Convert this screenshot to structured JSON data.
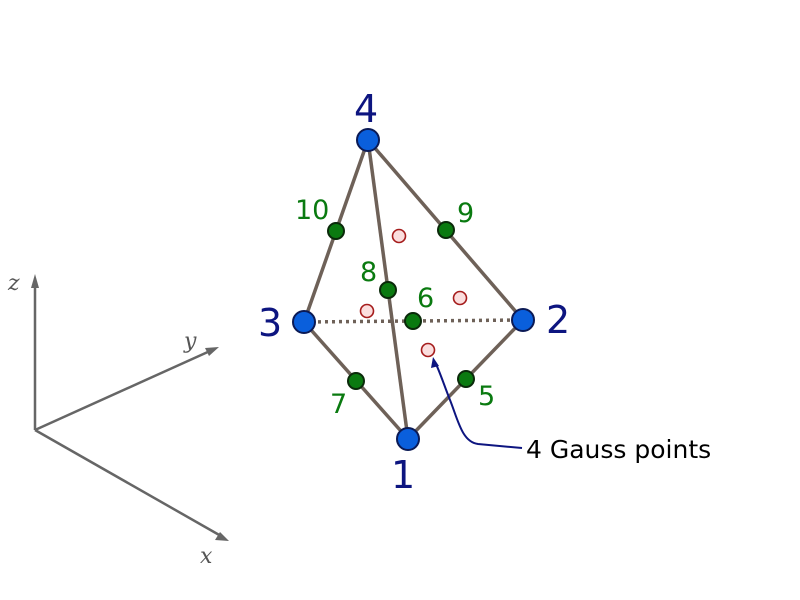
{
  "axes": {
    "labels": {
      "x": "x",
      "y": "y",
      "z": "z"
    },
    "color": "#666666"
  },
  "corner_nodes": [
    {
      "id": "1",
      "label": "1"
    },
    {
      "id": "2",
      "label": "2"
    },
    {
      "id": "3",
      "label": "3"
    },
    {
      "id": "4",
      "label": "4"
    }
  ],
  "midside_nodes": [
    {
      "id": "5",
      "label": "5",
      "edge": [
        "1",
        "2"
      ]
    },
    {
      "id": "6",
      "label": "6",
      "edge": [
        "2",
        "3"
      ]
    },
    {
      "id": "7",
      "label": "7",
      "edge": [
        "1",
        "3"
      ]
    },
    {
      "id": "8",
      "label": "8",
      "edge": [
        "1",
        "4"
      ]
    },
    {
      "id": "9",
      "label": "9",
      "edge": [
        "2",
        "4"
      ]
    },
    {
      "id": "10",
      "label": "10",
      "edge": [
        "3",
        "4"
      ]
    }
  ],
  "edges": [
    {
      "from": "1",
      "to": "2",
      "style": "solid"
    },
    {
      "from": "1",
      "to": "3",
      "style": "solid"
    },
    {
      "from": "1",
      "to": "4",
      "style": "solid"
    },
    {
      "from": "2",
      "to": "4",
      "style": "solid"
    },
    {
      "from": "3",
      "to": "4",
      "style": "solid"
    },
    {
      "from": "2",
      "to": "3",
      "style": "dotted"
    }
  ],
  "gauss_points": {
    "count": 4
  },
  "callout": {
    "text": "4 Gauss points"
  },
  "colors": {
    "corner_node": "#0a5fdc",
    "corner_label": "#0d1580",
    "midside_node": "#0a7a10",
    "midside_label": "#0a7a10",
    "gauss_point_fill": "#fbdede",
    "gauss_point_stroke": "#a51c1c",
    "edge": "#6e6158",
    "callout_line": "#0d1580"
  }
}
